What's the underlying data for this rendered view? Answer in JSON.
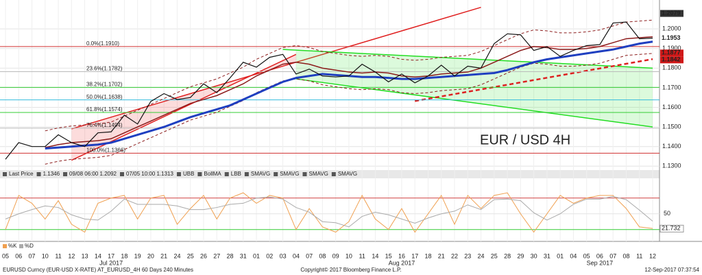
{
  "chart_data": [
    {
      "type": "line",
      "annotation": "EUR / USD 4H",
      "categories": [
        "05",
        "06",
        "07",
        "10",
        "11",
        "12",
        "13",
        "14",
        "17",
        "18",
        "19",
        "20",
        "21",
        "24",
        "25",
        "26",
        "27",
        "28",
        "31",
        "01",
        "02",
        "03",
        "04",
        "07",
        "08",
        "09",
        "10",
        "11",
        "14",
        "15",
        "16",
        "17",
        "18",
        "21",
        "22",
        "23",
        "24",
        "25",
        "28",
        "29",
        "30",
        "31",
        "01",
        "04",
        "05",
        "06",
        "07",
        "08",
        "11",
        "12"
      ],
      "months": [
        {
          "label": "Jul 2017",
          "at": 8
        },
        {
          "label": "Aug 2017",
          "at": 30
        },
        {
          "label": "Sep 2017",
          "at": 45
        }
      ],
      "ylim": [
        1.128,
        1.213
      ],
      "yticks": [
        {
          "value": 1.13,
          "label": "1.1300"
        },
        {
          "value": 1.14,
          "label": "1.1400"
        },
        {
          "value": 1.15,
          "label": "1.1500"
        },
        {
          "value": 1.16,
          "label": "1.1600"
        },
        {
          "value": 1.17,
          "label": "1.1700"
        },
        {
          "value": 1.18,
          "label": "1.1800"
        },
        {
          "value": 1.19,
          "label": "1.1900"
        },
        {
          "value": 1.2,
          "label": "1.2000"
        }
      ],
      "grid": true,
      "series": [
        {
          "name": "UBB",
          "color": "#8b1a1a",
          "dash": true,
          "values": [
            null,
            null,
            null,
            1.148,
            1.1495,
            1.1505,
            1.151,
            1.1515,
            1.1525,
            1.1555,
            1.1585,
            1.1615,
            1.1645,
            1.1675,
            1.1705,
            1.1725,
            1.1745,
            1.1775,
            1.1805,
            1.1845,
            1.1875,
            1.1905,
            1.1915,
            1.1905,
            1.1885,
            1.1875,
            1.1865,
            1.186,
            1.1865,
            1.186,
            1.1845,
            1.184,
            1.1845,
            1.1855,
            1.186,
            1.1865,
            1.1885,
            1.1915,
            1.1945,
            1.1975,
            1.1995,
            1.199,
            1.198,
            1.198,
            1.1985,
            1.1995,
            1.2015,
            1.2035,
            1.204,
            1.2045
          ]
        },
        {
          "name": "LBB",
          "color": "#8b1a1a",
          "dash": true,
          "values": [
            null,
            null,
            null,
            1.131,
            1.1325,
            1.1335,
            1.134,
            1.1345,
            1.1355,
            1.1385,
            1.1415,
            1.1445,
            1.1475,
            1.1505,
            1.1535,
            1.1555,
            1.1575,
            1.1605,
            1.1635,
            1.1675,
            1.1705,
            1.1735,
            1.1745,
            1.1735,
            1.1715,
            1.1705,
            1.1695,
            1.169,
            1.1695,
            1.169,
            1.1675,
            1.167,
            1.1675,
            1.1685,
            1.169,
            1.1695,
            1.1715,
            1.1745,
            1.1775,
            1.1805,
            1.1825,
            1.182,
            1.181,
            1.181,
            1.1815,
            1.1825,
            1.1845,
            1.1865,
            1.187,
            1.1875
          ]
        },
        {
          "name": "BollMA",
          "color": "#8b1a1a",
          "width": 1.5,
          "values": [
            null,
            null,
            null,
            1.1395,
            1.141,
            1.142,
            1.1425,
            1.143,
            1.144,
            1.147,
            1.15,
            1.153,
            1.156,
            1.159,
            1.162,
            1.164,
            1.166,
            1.169,
            1.172,
            1.176,
            1.179,
            1.182,
            1.183,
            1.182,
            1.18,
            1.179,
            1.178,
            1.1775,
            1.178,
            1.1775,
            1.176,
            1.1755,
            1.176,
            1.177,
            1.1775,
            1.178,
            1.18,
            1.183,
            1.186,
            1.189,
            1.191,
            1.1905,
            1.1895,
            1.1895,
            1.19,
            1.191,
            1.193,
            1.195,
            1.1955,
            1.196
          ]
        },
        {
          "name": "SMAVG",
          "color": "#1f3fc0",
          "width": 3,
          "values": [
            null,
            null,
            null,
            1.139,
            1.1395,
            1.14,
            1.1405,
            1.141,
            1.142,
            1.144,
            1.146,
            1.148,
            1.15,
            1.1525,
            1.155,
            1.157,
            1.159,
            1.161,
            1.164,
            1.167,
            1.17,
            1.173,
            1.175,
            1.176,
            1.177,
            1.1765,
            1.176,
            1.1755,
            1.1755,
            1.175,
            1.1745,
            1.1745,
            1.175,
            1.1755,
            1.176,
            1.1765,
            1.177,
            1.1775,
            1.179,
            1.181,
            1.183,
            1.1845,
            1.1855,
            1.1865,
            1.1875,
            1.1885,
            1.1895,
            1.191,
            1.1925,
            1.1935
          ]
        },
        {
          "name": "Last Price",
          "color": "#111111",
          "width": 1.2,
          "values": [
            1.1335,
            1.142,
            1.14,
            1.14,
            1.146,
            1.142,
            1.14,
            1.147,
            1.1475,
            1.156,
            1.1515,
            1.163,
            1.167,
            1.164,
            1.165,
            1.172,
            1.1675,
            1.175,
            1.183,
            1.1805,
            1.1855,
            1.187,
            1.177,
            1.1795,
            1.176,
            1.1755,
            1.176,
            1.182,
            1.178,
            1.173,
            1.177,
            1.1725,
            1.176,
            1.1815,
            1.176,
            1.181,
            1.18,
            1.1925,
            1.1975,
            1.197,
            1.189,
            1.191,
            1.186,
            1.189,
            1.1915,
            1.192,
            1.203,
            1.2035,
            1.195,
            1.1953
          ]
        }
      ],
      "fib_levels": [
        {
          "label": "0.0%(1.1910)",
          "value": 1.191,
          "color": "#d03030"
        },
        {
          "label": "23.6%(1.1782)",
          "value": 1.1782,
          "color": "#bbbbbb"
        },
        {
          "label": "38.2%(1.1702)",
          "value": 1.1702,
          "color": "#33cc33"
        },
        {
          "label": "50.0%(1.1638)",
          "value": 1.1638,
          "color": "#33bbdd"
        },
        {
          "label": "61.8%(1.1574)",
          "value": 1.1574,
          "color": "#33cc33"
        },
        {
          "label": "76.4%(1.1494)",
          "value": 1.1494,
          "color": "#bbbbbb"
        },
        {
          "label": "100.0%(1.1366)",
          "value": 1.1366,
          "color": "#d03030"
        }
      ],
      "channels": [
        {
          "color": "#e02020",
          "fill": "rgba(240,60,60,0.18)",
          "upper": {
            "x_index": [
              5,
              36
            ],
            "values": [
              1.149,
              1.211
            ]
          },
          "lower": {
            "x_index": [
              5,
              22
            ],
            "values": [
              1.133,
              1.187
            ]
          }
        },
        {
          "color": "#22dd22",
          "fill": "rgba(60,230,60,0.18)",
          "upper": {
            "x_index": [
              21,
              49
            ],
            "values": [
              1.1895,
              1.18
            ]
          },
          "lower": {
            "x_index": [
              22,
              49
            ],
            "values": [
              1.1745,
              1.15
            ]
          }
        }
      ],
      "trendline": {
        "color": "#dd2020",
        "x_index": [
          31,
          49
        ],
        "values": [
          1.1632,
          1.1846
        ]
      },
      "price_tags": [
        {
          "value": 1.2079,
          "bg": "#333333",
          "fg": "#ffffff"
        },
        {
          "value": 1.1953,
          "bg": "#ffffff",
          "fg": "#000000"
        },
        {
          "value": 1.1877,
          "bg": "#d01818",
          "fg": "#ffffff"
        },
        {
          "value": 1.1842,
          "bg": "#d01818",
          "fg": "#ffffff"
        }
      ],
      "legend": [
        "Last Price",
        "1.1346",
        "09/08 06:00 1.2092",
        "07/05 10:00 1.1313",
        "UBB",
        "BollMA",
        "LBB",
        "SMAVG",
        "SMAVG",
        "SMAVG",
        "SMAVG"
      ]
    },
    {
      "type": "line",
      "ylim": [
        0,
        115
      ],
      "yticks": [
        50
      ],
      "hlines": [
        {
          "value": 80,
          "color": "#d04040"
        },
        {
          "value": 20,
          "color": "#33cc33"
        }
      ],
      "series": [
        {
          "name": "%K",
          "color": "#f0a050",
          "values": [
            20,
            85,
            70,
            40,
            75,
            30,
            15,
            70,
            80,
            85,
            40,
            80,
            85,
            30,
            60,
            85,
            40,
            80,
            90,
            70,
            85,
            80,
            20,
            60,
            25,
            15,
            35,
            85,
            40,
            20,
            60,
            15,
            50,
            85,
            30,
            85,
            60,
            85,
            90,
            50,
            15,
            50,
            85,
            70,
            80,
            85,
            85,
            60,
            25,
            22
          ]
        },
        {
          "name": "%D",
          "color": "#aaaaaa",
          "values": [
            40,
            50,
            58,
            65,
            62,
            48,
            40,
            38,
            55,
            78,
            68,
            68,
            68,
            65,
            58,
            58,
            62,
            68,
            70,
            80,
            82,
            78,
            62,
            53,
            35,
            33,
            25,
            45,
            53,
            48,
            40,
            32,
            42,
            50,
            55,
            67,
            58,
            77,
            78,
            75,
            52,
            38,
            50,
            68,
            78,
            78,
            83,
            77,
            57,
            36
          ]
        }
      ],
      "last_tag": {
        "value": 21.732,
        "label": "21.732"
      }
    }
  ],
  "footer": {
    "left": "EURUSD Curncy (EUR-USD X-RATE) AT_EURUSD_4H 60 Days 240 Minutes",
    "center": "Copyright© 2017 Bloomberg Finance L.P.",
    "right": "12-Sep-2017 07:37:54"
  }
}
